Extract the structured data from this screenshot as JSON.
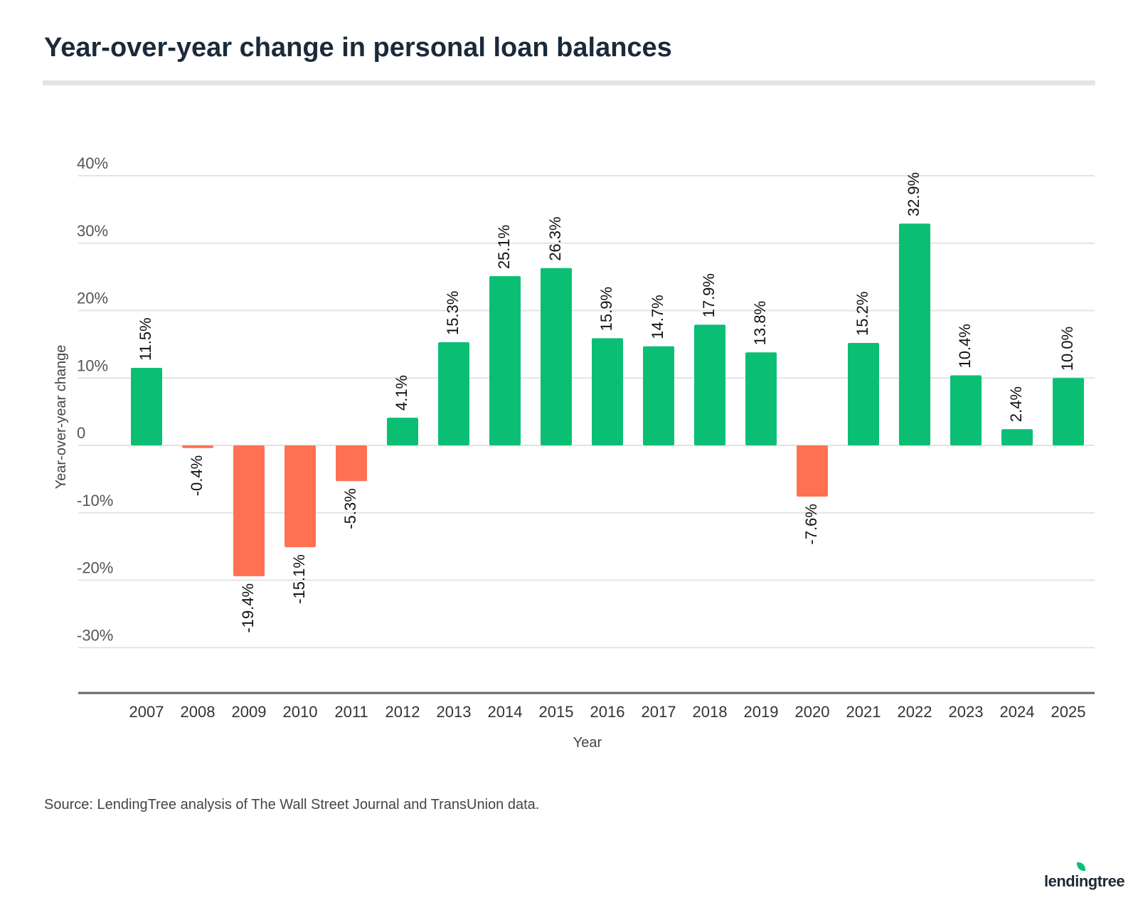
{
  "title": "Year-over-year change in personal loan balances",
  "source": "Source: LendingTree analysis of The Wall Street Journal and TransUnion data.",
  "logo": "lendingtree",
  "colors": {
    "positive": "#0abf74",
    "negative": "#ff7151",
    "grid": "#e3e3e3",
    "axis": "#666666"
  },
  "chart_data": {
    "type": "bar",
    "xlabel": "Year",
    "ylabel": "Year-over-year change",
    "ylim": [
      -36.7,
      40
    ],
    "yticks": [
      40,
      30,
      20,
      10,
      0,
      -10,
      -20,
      -30
    ],
    "ytick_labels": [
      "40%",
      "30%",
      "20%",
      "10%",
      "0",
      "-10%",
      "-20%",
      "-30%"
    ],
    "grid": true,
    "categories": [
      "2007",
      "2008",
      "2009",
      "2010",
      "2011",
      "2012",
      "2013",
      "2014",
      "2015",
      "2016",
      "2017",
      "2018",
      "2019",
      "2020",
      "2021",
      "2022",
      "2023",
      "2024",
      "2025"
    ],
    "values": [
      11.5,
      -0.4,
      -19.4,
      -15.1,
      -5.3,
      4.1,
      15.3,
      25.1,
      26.3,
      15.9,
      14.7,
      17.9,
      13.8,
      -7.6,
      15.2,
      32.9,
      10.4,
      2.4,
      10.0
    ],
    "labels": [
      "11.5%",
      "-0.4%",
      "-19.4%",
      "-15.1%",
      "-5.3%",
      "4.1%",
      "15.3%",
      "25.1%",
      "26.3%",
      "15.9%",
      "14.7%",
      "17.9%",
      "13.8%",
      "-7.6%",
      "15.2%",
      "32.9%",
      "10.4%",
      "2.4%",
      "10.0%"
    ]
  }
}
